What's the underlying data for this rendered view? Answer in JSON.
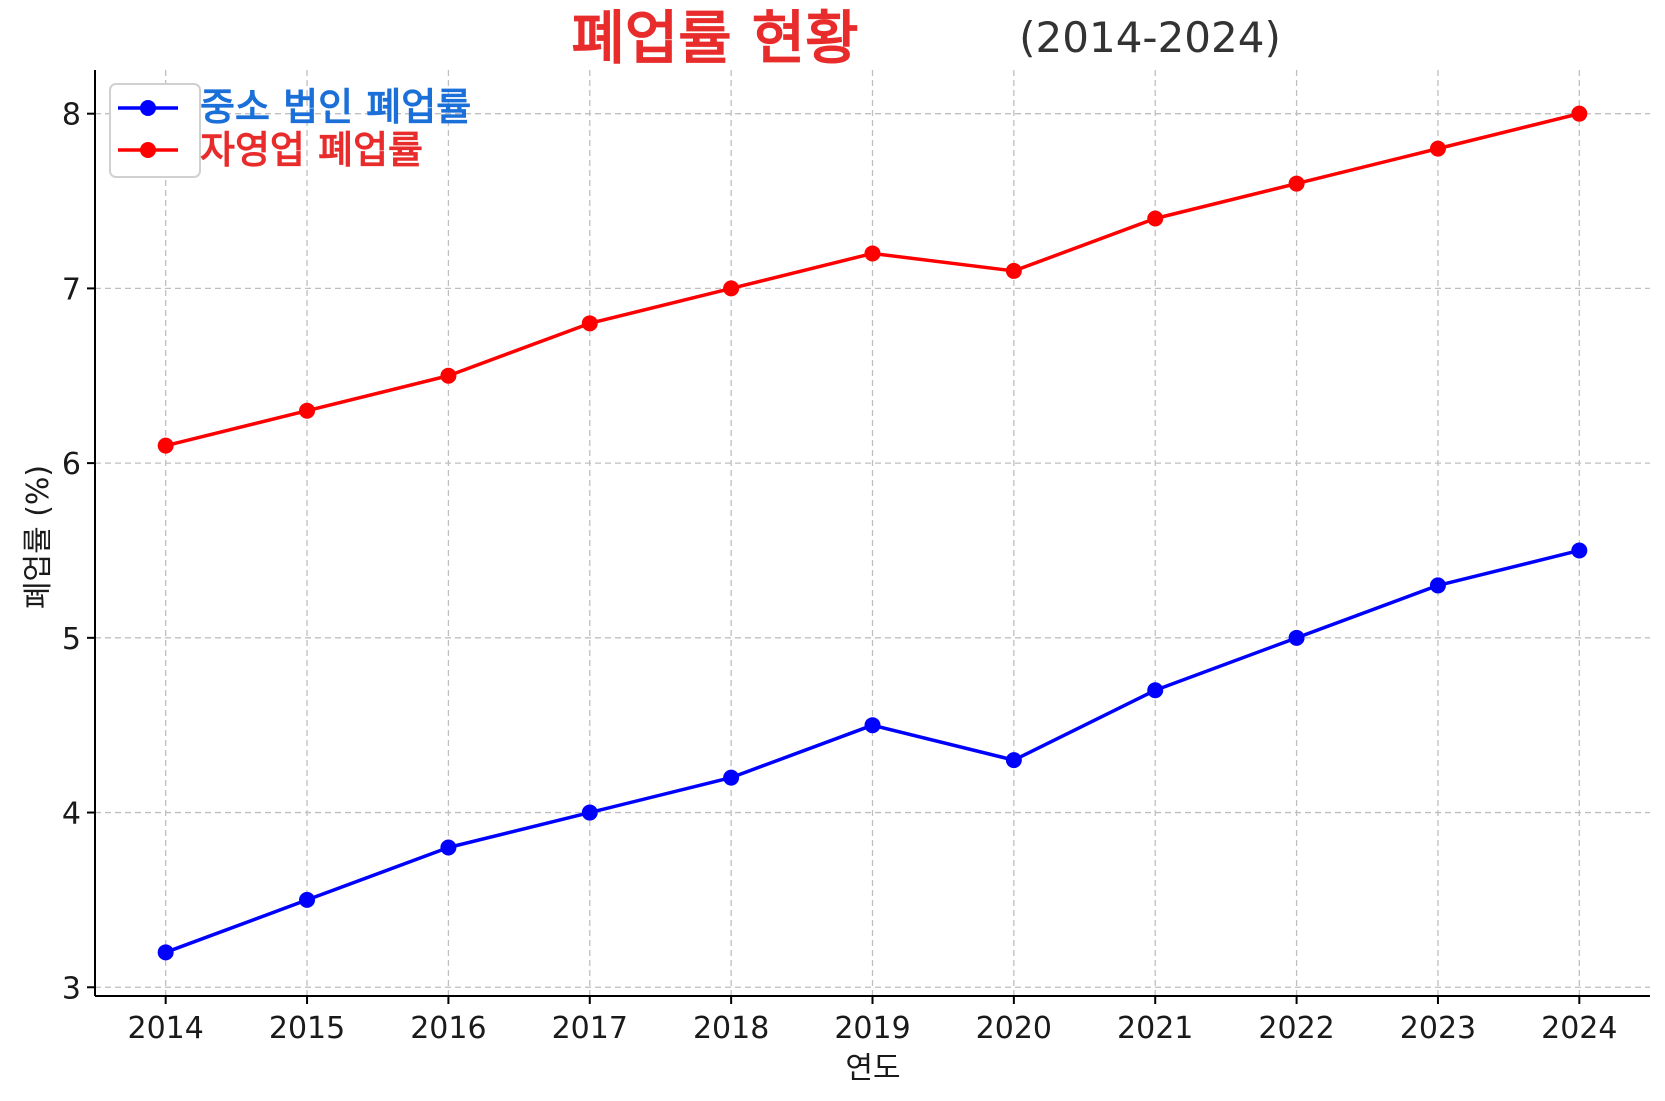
{
  "chart_data": {
    "type": "line",
    "title": "폐업률 현황",
    "subtitle": "(2014-2024)",
    "xlabel": "연도",
    "ylabel": "폐업률 (%)",
    "x": [
      2014,
      2015,
      2016,
      2017,
      2018,
      2019,
      2020,
      2021,
      2022,
      2023,
      2024
    ],
    "xlim": [
      2013.5,
      2024.5
    ],
    "ylim": [
      2.95,
      8.25
    ],
    "yticks": [
      3,
      4,
      5,
      6,
      7,
      8
    ],
    "grid": true,
    "legend_position": "top-left",
    "series": [
      {
        "name": "중소 법인 폐업률",
        "color": "#0000ff",
        "legend_color": "#1a6fd8",
        "values": [
          3.2,
          3.5,
          3.8,
          4.0,
          4.2,
          4.5,
          4.3,
          4.7,
          5.0,
          5.3,
          5.5
        ]
      },
      {
        "name": "자영업 폐업률",
        "color": "#ff0000",
        "legend_color": "#e82c2c",
        "values": [
          6.1,
          6.3,
          6.5,
          6.8,
          7.0,
          7.2,
          7.1,
          7.4,
          7.6,
          7.8,
          8.0
        ]
      }
    ],
    "title_color": "#e82c2c"
  }
}
